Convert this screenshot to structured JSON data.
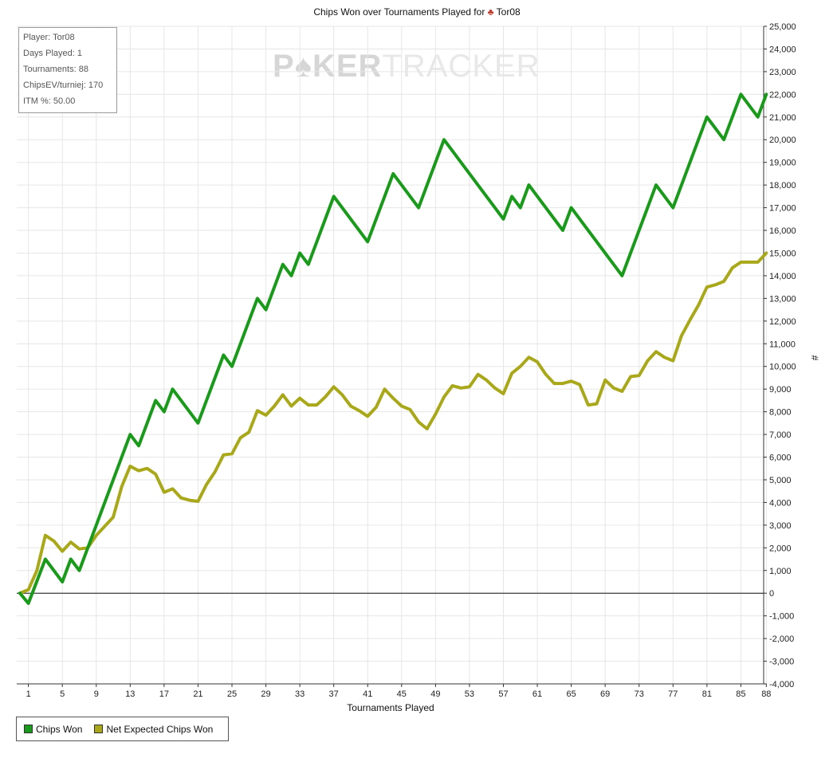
{
  "chart_data": {
    "type": "line",
    "title": "Chips Won over Tournaments Played for",
    "title_player": "Tor08",
    "xlabel": "Tournaments Played",
    "ylabel": "#",
    "xlim": [
      0,
      88
    ],
    "ylim": [
      -4000,
      25000
    ],
    "x_ticks": [
      1,
      5,
      9,
      13,
      17,
      21,
      25,
      29,
      33,
      37,
      41,
      45,
      49,
      53,
      57,
      61,
      65,
      69,
      73,
      77,
      81,
      85,
      88
    ],
    "y_ticks": [
      -4000,
      -3000,
      -2000,
      -1000,
      0,
      1000,
      2000,
      3000,
      4000,
      5000,
      6000,
      7000,
      8000,
      9000,
      10000,
      11000,
      12000,
      13000,
      14000,
      15000,
      16000,
      17000,
      18000,
      19000,
      20000,
      21000,
      22000,
      23000,
      24000,
      25000
    ],
    "y_tick_labels": [
      "-4,000",
      "-3,000",
      "-2,000",
      "-1,000",
      "0",
      "1,000",
      "2,000",
      "3,000",
      "4,000",
      "5,000",
      "6,000",
      "7,000",
      "8,000",
      "9,000",
      "10,000",
      "11,000",
      "12,000",
      "13,000",
      "14,000",
      "15,000",
      "16,000",
      "17,000",
      "18,000",
      "19,000",
      "20,000",
      "21,000",
      "22,000",
      "23,000",
      "24,000",
      "25,000"
    ],
    "grid": true,
    "legend_position": "bottom-left",
    "series": [
      {
        "name": "Chips Won",
        "color": "#1a9a1a",
        "points": [
          [
            0,
            0
          ],
          [
            1,
            -450
          ],
          [
            3,
            1500
          ],
          [
            5,
            500
          ],
          [
            6,
            1500
          ],
          [
            7,
            1000
          ],
          [
            13,
            7000
          ],
          [
            14,
            6500
          ],
          [
            16,
            8500
          ],
          [
            17,
            8000
          ],
          [
            18,
            9000
          ],
          [
            21,
            7500
          ],
          [
            24,
            10500
          ],
          [
            25,
            10000
          ],
          [
            28,
            13000
          ],
          [
            29,
            12500
          ],
          [
            31,
            14500
          ],
          [
            32,
            14000
          ],
          [
            33,
            15000
          ],
          [
            34,
            14500
          ],
          [
            37,
            17500
          ],
          [
            41,
            15500
          ],
          [
            44,
            18500
          ],
          [
            47,
            17000
          ],
          [
            50,
            20000
          ],
          [
            57,
            16500
          ],
          [
            58,
            17500
          ],
          [
            59,
            17000
          ],
          [
            60,
            18000
          ],
          [
            64,
            16000
          ],
          [
            65,
            17000
          ],
          [
            71,
            14000
          ],
          [
            75,
            18000
          ],
          [
            77,
            17000
          ],
          [
            81,
            21000
          ],
          [
            83,
            20000
          ],
          [
            85,
            22000
          ],
          [
            87,
            21000
          ],
          [
            88,
            22000
          ]
        ]
      },
      {
        "name": "Net Expected Chips Won",
        "color": "#a8a81a",
        "points": [
          [
            0,
            0
          ],
          [
            1,
            150
          ],
          [
            2,
            1000
          ],
          [
            3,
            2550
          ],
          [
            4,
            2300
          ],
          [
            5,
            1850
          ],
          [
            6,
            2250
          ],
          [
            7,
            1950
          ],
          [
            8,
            2000
          ],
          [
            9,
            2550
          ],
          [
            10,
            2950
          ],
          [
            11,
            3350
          ],
          [
            12,
            4700
          ],
          [
            13,
            5600
          ],
          [
            14,
            5400
          ],
          [
            15,
            5500
          ],
          [
            16,
            5250
          ],
          [
            17,
            4450
          ],
          [
            18,
            4600
          ],
          [
            19,
            4200
          ],
          [
            20,
            4100
          ],
          [
            21,
            4050
          ],
          [
            22,
            4800
          ],
          [
            23,
            5350
          ],
          [
            24,
            6100
          ],
          [
            25,
            6150
          ],
          [
            26,
            6850
          ],
          [
            27,
            7100
          ],
          [
            28,
            8050
          ],
          [
            29,
            7850
          ],
          [
            30,
            8250
          ],
          [
            31,
            8750
          ],
          [
            32,
            8250
          ],
          [
            33,
            8600
          ],
          [
            34,
            8300
          ],
          [
            35,
            8300
          ],
          [
            36,
            8650
          ],
          [
            37,
            9100
          ],
          [
            38,
            8750
          ],
          [
            39,
            8250
          ],
          [
            40,
            8050
          ],
          [
            41,
            7800
          ],
          [
            42,
            8200
          ],
          [
            43,
            9000
          ],
          [
            44,
            8600
          ],
          [
            45,
            8250
          ],
          [
            46,
            8100
          ],
          [
            47,
            7550
          ],
          [
            48,
            7250
          ],
          [
            49,
            7900
          ],
          [
            50,
            8650
          ],
          [
            51,
            9150
          ],
          [
            52,
            9050
          ],
          [
            53,
            9100
          ],
          [
            54,
            9650
          ],
          [
            55,
            9400
          ],
          [
            56,
            9050
          ],
          [
            57,
            8800
          ],
          [
            58,
            9700
          ],
          [
            59,
            10000
          ],
          [
            60,
            10400
          ],
          [
            61,
            10200
          ],
          [
            62,
            9650
          ],
          [
            63,
            9250
          ],
          [
            64,
            9250
          ],
          [
            65,
            9350
          ],
          [
            66,
            9200
          ],
          [
            67,
            8300
          ],
          [
            68,
            8350
          ],
          [
            69,
            9400
          ],
          [
            70,
            9050
          ],
          [
            71,
            8900
          ],
          [
            72,
            9550
          ],
          [
            73,
            9600
          ],
          [
            74,
            10250
          ],
          [
            75,
            10650
          ],
          [
            76,
            10400
          ],
          [
            77,
            10250
          ],
          [
            78,
            11350
          ],
          [
            79,
            12050
          ],
          [
            80,
            12700
          ],
          [
            81,
            13500
          ],
          [
            82,
            13600
          ],
          [
            83,
            13750
          ],
          [
            84,
            14350
          ],
          [
            85,
            14600
          ],
          [
            87,
            14600
          ],
          [
            88,
            15000
          ]
        ]
      }
    ]
  },
  "info": {
    "player": "Player: Tor08",
    "days": "Days Played: 1",
    "tournaments": "Tournaments: 88",
    "chipsev": "ChipsEV/turniej: 170",
    "itm": "ITM %: 50.00"
  },
  "watermark": {
    "left": "P",
    "mid": "KER",
    "right": "TRACKER"
  },
  "colors": {
    "grid": "#e6e6e6",
    "watermark_dark": "#d6d6d6",
    "watermark_light": "#e8e8e8"
  }
}
